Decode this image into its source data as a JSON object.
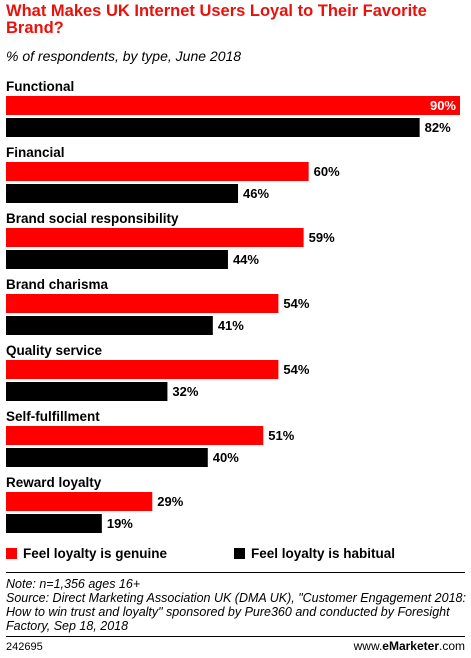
{
  "title": "What Makes UK Internet Users Loyal to Their Favorite Brand?",
  "subtitle": "% of respondents, by type, June 2018",
  "colors": {
    "genuine": "#ff0000",
    "habitual": "#000000",
    "title": "#e8120c"
  },
  "legend": [
    {
      "label": "Feel loyalty is genuine",
      "color": "#ff0000"
    },
    {
      "label": "Feel loyalty is habitual",
      "color": "#000000"
    }
  ],
  "chart_data": {
    "type": "bar",
    "orientation": "horizontal",
    "title": "What Makes UK Internet Users Loyal to Their Favorite Brand?",
    "subtitle": "% of respondents, by type, June 2018",
    "categories": [
      "Functional",
      "Financial",
      "Brand social responsibility",
      "Brand charisma",
      "Quality service",
      "Self-fulfillment",
      "Reward loyalty"
    ],
    "series": [
      {
        "name": "Feel loyalty is genuine",
        "values": [
          90,
          60,
          59,
          54,
          54,
          51,
          29
        ],
        "color": "#ff0000"
      },
      {
        "name": "Feel loyalty is habitual",
        "values": [
          82,
          46,
          44,
          41,
          32,
          40,
          19
        ],
        "color": "#000000"
      }
    ],
    "value_suffix": "%",
    "xlim": [
      0,
      90
    ],
    "grid": false,
    "legend_position": "bottom-left"
  },
  "notes": [
    "Note: n=1,356 ages 16+",
    "Source: Direct Marketing Association UK (DMA UK), \"Customer Engagement 2018: How to win trust and loyalty\" sponsored by Pure360 and conducted by Foresight Factory, Sep 18, 2018"
  ],
  "footer": {
    "id": "242695",
    "brand_prefix": "www.",
    "brand_name": "eMarketer",
    "brand_suffix": ".com"
  }
}
